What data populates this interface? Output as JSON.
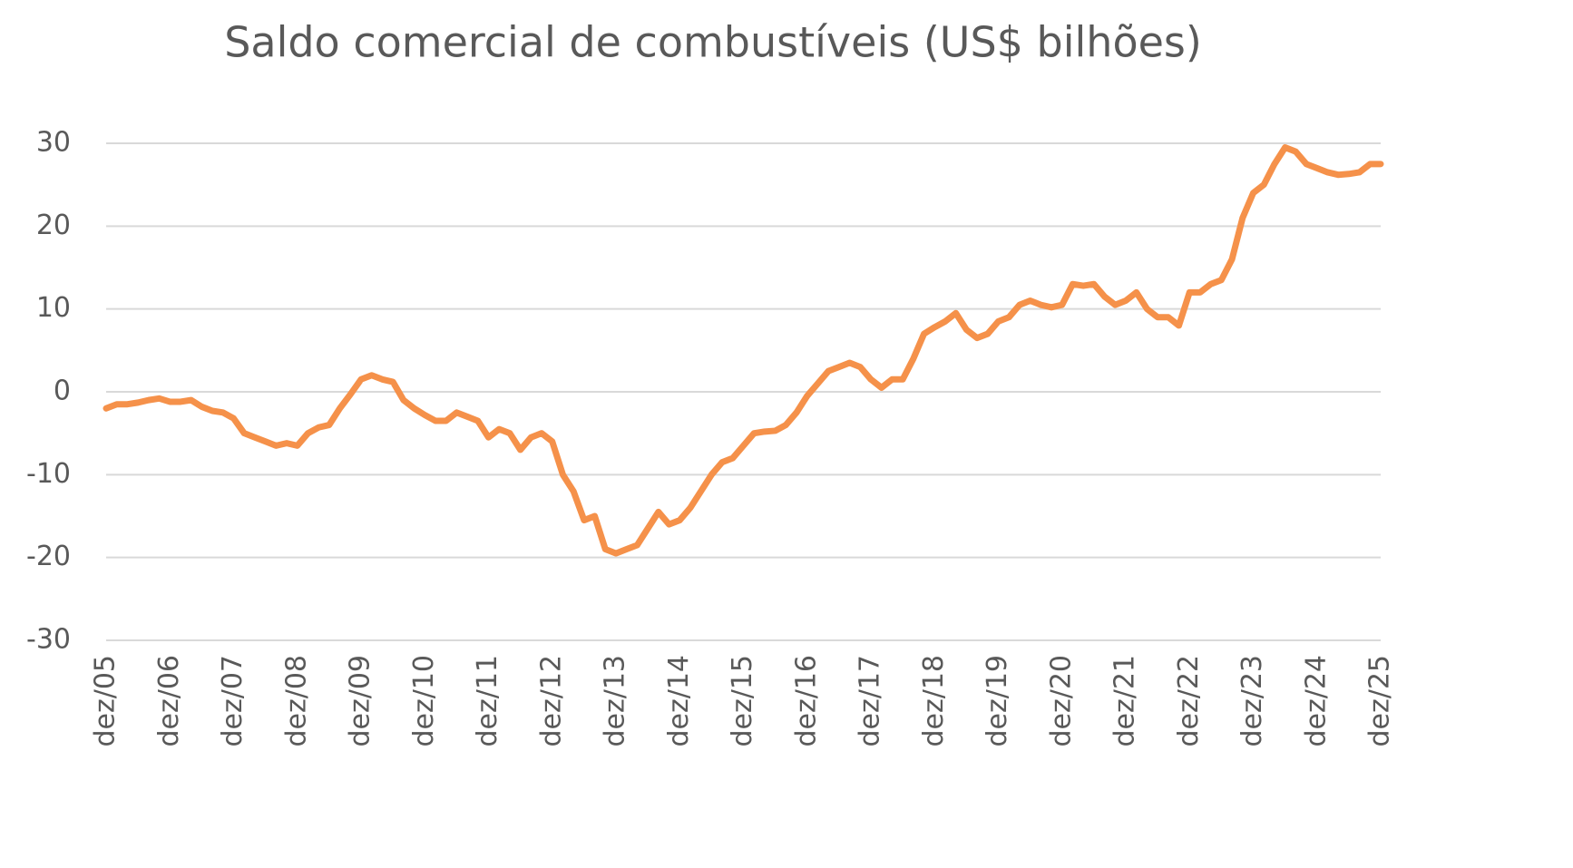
{
  "chart_data": {
    "type": "line",
    "title": "Saldo comercial de combustíveis (US$ bilhões)",
    "categories": [
      "dez/05",
      null,
      null,
      null,
      null,
      null,
      "dez/06",
      null,
      null,
      null,
      null,
      null,
      "dez/07",
      null,
      null,
      null,
      null,
      null,
      "dez/08",
      null,
      null,
      null,
      null,
      null,
      "dez/09",
      null,
      null,
      null,
      null,
      null,
      "dez/10",
      null,
      null,
      null,
      null,
      null,
      "dez/11",
      null,
      null,
      null,
      null,
      null,
      "dez/12",
      null,
      null,
      null,
      null,
      null,
      "dez/13",
      null,
      null,
      null,
      null,
      null,
      "dez/14",
      null,
      null,
      null,
      null,
      null,
      "dez/15",
      null,
      null,
      null,
      null,
      null,
      "dez/16",
      null,
      null,
      null,
      null,
      null,
      "dez/17",
      null,
      null,
      null,
      null,
      null,
      "dez/18",
      null,
      null,
      null,
      null,
      null,
      "dez/19",
      null,
      null,
      null,
      null,
      null,
      "dez/20",
      null,
      null,
      null,
      null,
      null,
      "dez/21",
      null,
      null,
      null,
      null,
      null,
      "dez/22",
      null,
      null,
      null,
      null,
      null,
      "dez/23",
      null,
      null,
      null,
      null,
      null,
      "dez/24",
      null,
      null,
      null,
      null,
      null,
      "dez/25"
    ],
    "series": [
      {
        "color": "#f5914a",
        "values": [
          -2,
          -1.5,
          -1.5,
          -1.3,
          -1,
          -0.8,
          -1.2,
          -1.2,
          -1,
          -1.8,
          -2.3,
          -2.5,
          -3.2,
          -5,
          -5.5,
          -6,
          -6.5,
          -6.2,
          -6.5,
          -5,
          -4.3,
          -4,
          -2,
          -0.3,
          1.5,
          2,
          1.5,
          1.2,
          -1,
          -2,
          -2.8,
          -3.5,
          -3.5,
          -2.5,
          -3,
          -3.5,
          -5.5,
          -4.5,
          -5,
          -7,
          -5.5,
          -5,
          -6,
          -10,
          -12,
          -15.5,
          -15,
          -19,
          -19.5,
          -19,
          -18.5,
          -16.5,
          -14.5,
          -16,
          -15.5,
          -14,
          -12,
          -10,
          -8.5,
          -8,
          -6.5,
          -5,
          -4.8,
          -4.7,
          -4,
          -2.5,
          -0.5,
          1,
          2.5,
          3,
          3.5,
          3,
          1.5,
          0.5,
          1.5,
          1.5,
          4,
          7,
          7.8,
          8.5,
          9.5,
          7.5,
          6.5,
          7,
          8.5,
          9,
          10.5,
          11,
          10.5,
          10.2,
          10.5,
          13,
          12.8,
          13,
          11.5,
          10.5,
          11,
          12,
          10,
          9,
          9,
          8,
          12,
          12,
          13,
          13.5,
          16,
          21,
          24,
          25,
          27.5,
          29.5,
          29,
          27.5,
          27,
          26.5,
          26.2,
          26.3,
          26.5,
          27.5,
          27.5
        ]
      }
    ],
    "ylim": [
      -30,
      30
    ],
    "yticks": [
      -30,
      -20,
      -10,
      0,
      10,
      20,
      30
    ],
    "grid": true
  }
}
